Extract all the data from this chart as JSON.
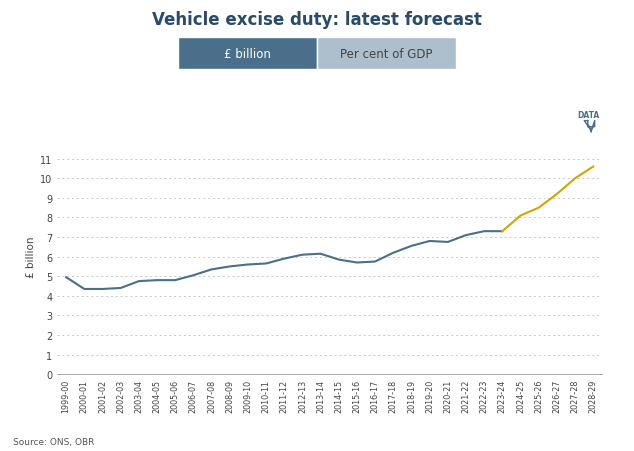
{
  "title": "Vehicle excise duty: latest forecast",
  "ylabel": "£ billion",
  "source": "Source: ONS, OBR",
  "legend_items": [
    "£ billion",
    "Per cent of GDP"
  ],
  "legend_color_left": "#4a6f8a",
  "legend_color_right": "#adbfcc",
  "x_labels": [
    "1999-00",
    "2000-01",
    "2001-02",
    "2002-03",
    "2003-04",
    "2004-05",
    "2005-06",
    "2006-07",
    "2007-08",
    "2008-09",
    "2009-10",
    "2010-11",
    "2011-12",
    "2012-13",
    "2013-14",
    "2014-15",
    "2015-16",
    "2016-17",
    "2017-18",
    "2018-19",
    "2019-20",
    "2020-21",
    "2021-22",
    "2022-23",
    "2023-24",
    "2024-25",
    "2025-26",
    "2026-27",
    "2027-28",
    "2028-29"
  ],
  "blue_values": [
    4.95,
    4.35,
    4.35,
    4.4,
    4.75,
    4.8,
    4.8,
    5.05,
    5.35,
    5.5,
    5.6,
    5.65,
    5.9,
    6.1,
    6.15,
    5.85,
    5.7,
    5.75,
    6.2,
    6.55,
    6.8,
    6.75,
    7.1,
    7.3,
    7.3
  ],
  "gold_values": [
    7.3,
    8.1,
    8.5,
    9.2,
    10.0,
    10.6
  ],
  "blue_color": "#4a6f8a",
  "gold_color": "#d4a500",
  "background_color": "#ffffff",
  "ylim": [
    0,
    12
  ],
  "yticks": [
    0,
    1,
    2,
    3,
    4,
    5,
    6,
    7,
    8,
    9,
    10,
    11
  ],
  "grid_color": "#c8c8c8",
  "title_fontsize": 12,
  "axis_fontsize": 7,
  "ylabel_fontsize": 7.5,
  "data_icon_color": "#4a6f8a"
}
